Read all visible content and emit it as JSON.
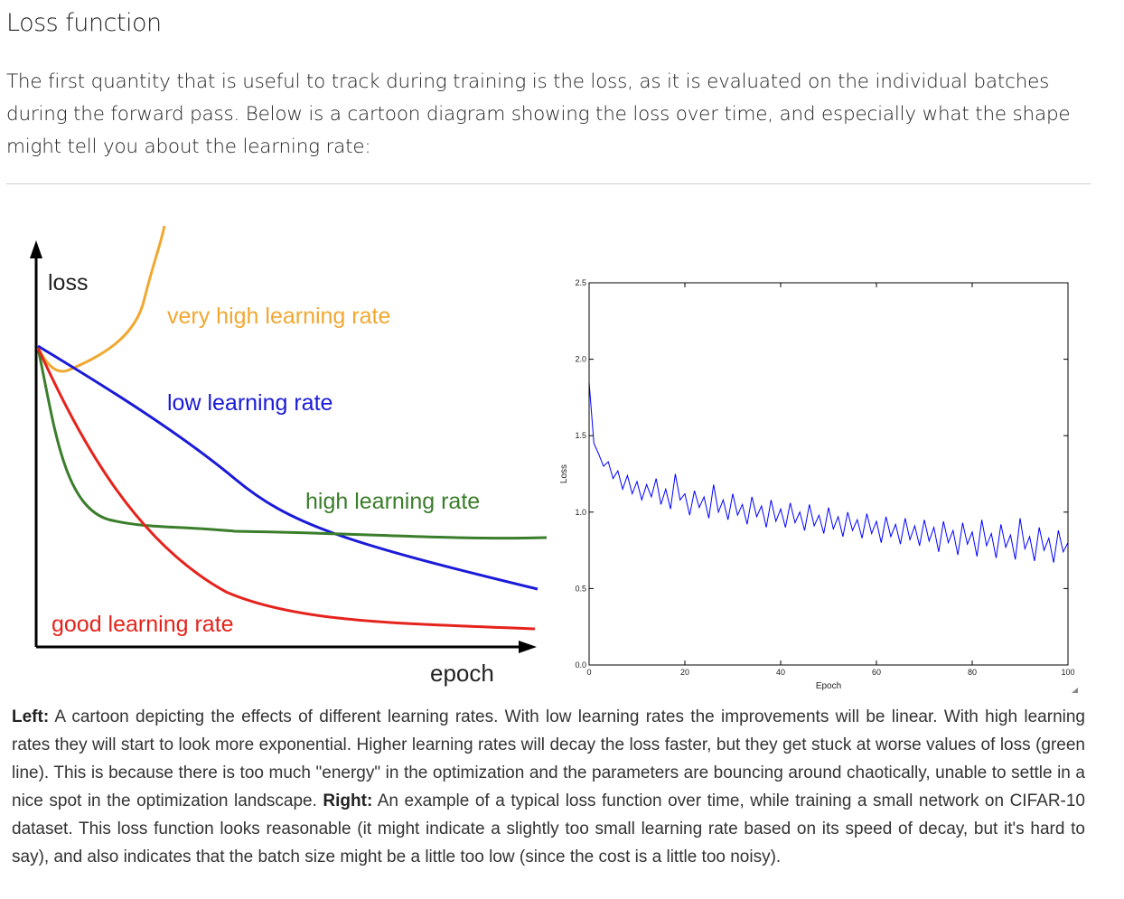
{
  "header": {
    "title": "Loss function"
  },
  "intro": "The first quantity that is useful to track during training is the loss, as it is evaluated on the individual batches during the forward pass. Below is a cartoon diagram showing the loss over time, and especially what the shape might tell you about the learning rate:",
  "diagram": {
    "y_axis": "loss",
    "x_axis": "epoch",
    "labels": [
      "very high learning rate",
      "low learning rate",
      "high learning rate",
      "good learning rate"
    ]
  },
  "chart_data": {
    "type": "line",
    "xlabel": "Epoch",
    "ylabel": "Loss",
    "color": "#0000ff",
    "xlim": [
      0,
      100
    ],
    "ylim": [
      0,
      2.5
    ],
    "xticks": [
      0,
      20,
      40,
      60,
      80,
      100
    ],
    "yticks": [
      {
        "value": 0,
        "label": "0.0"
      },
      0.5,
      {
        "value": 1,
        "label": "1.0"
      },
      1.5,
      {
        "value": 2,
        "label": "2.0"
      },
      2.5
    ],
    "x": [
      0,
      1,
      2,
      3,
      4,
      5,
      6,
      7,
      8,
      9,
      10,
      11,
      12,
      13,
      14,
      15,
      16,
      17,
      18,
      19,
      20,
      21,
      22,
      23,
      24,
      25,
      26,
      27,
      28,
      29,
      30,
      31,
      32,
      33,
      34,
      35,
      36,
      37,
      38,
      39,
      40,
      41,
      42,
      43,
      44,
      45,
      46,
      47,
      48,
      49,
      50,
      51,
      52,
      53,
      54,
      55,
      56,
      57,
      58,
      59,
      60,
      61,
      62,
      63,
      64,
      65,
      66,
      67,
      68,
      69,
      70,
      71,
      72,
      73,
      74,
      75,
      76,
      77,
      78,
      79,
      80,
      81,
      82,
      83,
      84,
      85,
      86,
      87,
      88,
      89,
      90,
      91,
      92,
      93,
      94,
      95,
      96,
      97,
      98,
      99,
      100
    ],
    "values": [
      1.85,
      1.45,
      1.38,
      1.3,
      1.33,
      1.22,
      1.27,
      1.15,
      1.24,
      1.12,
      1.2,
      1.08,
      1.18,
      1.1,
      1.22,
      1.05,
      1.15,
      1.02,
      1.25,
      1.08,
      1.12,
      0.98,
      1.14,
      1.03,
      1.1,
      0.96,
      1.18,
      1.0,
      1.08,
      0.95,
      1.12,
      0.98,
      1.05,
      0.92,
      1.1,
      0.97,
      1.04,
      0.9,
      1.08,
      0.94,
      1.02,
      0.9,
      1.06,
      0.93,
      1.0,
      0.88,
      1.05,
      0.91,
      0.98,
      0.86,
      1.03,
      0.89,
      0.97,
      0.84,
      1.0,
      0.88,
      0.95,
      0.83,
      0.99,
      0.86,
      0.94,
      0.8,
      0.97,
      0.84,
      0.92,
      0.79,
      0.96,
      0.82,
      0.91,
      0.78,
      0.95,
      0.81,
      0.9,
      0.74,
      0.94,
      0.8,
      0.88,
      0.72,
      0.93,
      0.79,
      0.87,
      0.71,
      0.95,
      0.78,
      0.86,
      0.7,
      0.92,
      0.77,
      0.85,
      0.69,
      0.96,
      0.76,
      0.84,
      0.68,
      0.9,
      0.75,
      0.83,
      0.67,
      0.88,
      0.74,
      0.8
    ]
  },
  "caption": {
    "left_label": "Left:",
    "left_text": " A cartoon depicting the effects of different learning rates. With low learning rates the improvements will be linear. With high learning rates they will start to look more exponential. Higher learning rates will decay the loss faster, but they get stuck at worse values of loss (green line). This is because there is too much \"energy\" in the optimization and the parameters are bouncing around chaotically, unable to settle in a nice spot in the optimization landscape. ",
    "right_label": "Right:",
    "right_text": " An example of a typical loss function over time, while training a small network on CIFAR-10 dataset. This loss function looks reasonable (it might indicate a slightly too small learning rate based on its speed of decay, but it's hard to say), and also indicates that the batch size might be a little too low (since the cost is a little too noisy)."
  }
}
